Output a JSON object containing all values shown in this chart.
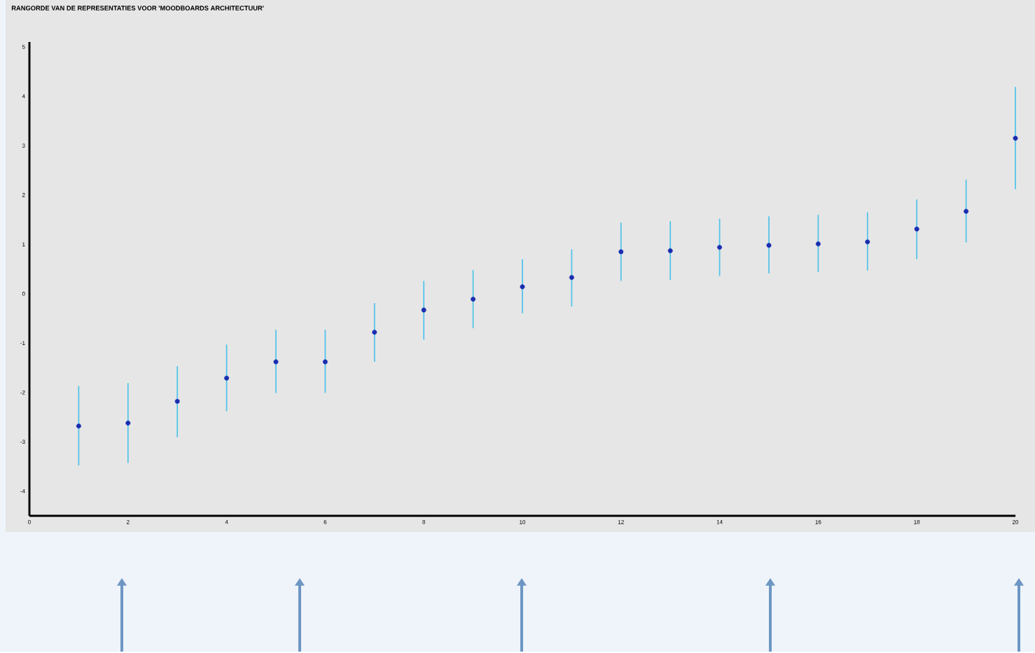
{
  "chart_data": {
    "type": "scatter",
    "title": "RANGORDE VAN DE REPRESENTATIES VOOR 'MOODBOARDS ARCHITECTUUR'",
    "x": [
      1,
      2,
      3,
      4,
      5,
      6,
      7,
      8,
      9,
      10,
      11,
      12,
      13,
      14,
      15,
      16,
      17,
      18,
      19,
      20
    ],
    "series": [
      {
        "color": "#1a2db0",
        "values": [
          -2.68,
          -2.62,
          -2.18,
          -1.71,
          -1.38,
          -1.38,
          -0.78,
          -0.33,
          -0.11,
          0.14,
          0.33,
          0.85,
          0.87,
          0.94,
          0.98,
          1.01,
          1.05,
          1.31,
          1.67,
          3.15
        ],
        "errors": [
          [
            -3.48,
            -1.87
          ],
          [
            -3.43,
            -1.81
          ],
          [
            -2.91,
            -1.47
          ],
          [
            -2.38,
            -1.03
          ],
          [
            -2.01,
            -0.73
          ],
          [
            -2.01,
            -0.73
          ],
          [
            -1.38,
            -0.19
          ],
          [
            -0.93,
            0.26
          ],
          [
            -0.7,
            0.48
          ],
          [
            -0.4,
            0.7
          ],
          [
            -0.26,
            0.9
          ],
          [
            0.26,
            1.44
          ],
          [
            0.28,
            1.47
          ],
          [
            0.36,
            1.52
          ],
          [
            0.41,
            1.57
          ],
          [
            0.44,
            1.6
          ],
          [
            0.47,
            1.65
          ],
          [
            0.7,
            1.91
          ],
          [
            1.04,
            2.31
          ],
          [
            2.12,
            4.19
          ]
        ]
      }
    ],
    "xlim": [
      0,
      20
    ],
    "xticks": [
      0,
      2,
      4,
      6,
      8,
      10,
      12,
      14,
      16,
      18,
      20
    ],
    "ylim": [
      -4.5,
      5.1
    ],
    "yticks": [
      -4,
      -3,
      -2,
      -1,
      0,
      1,
      2,
      3,
      4,
      5
    ],
    "marker": "circle",
    "grid": false
  }
}
